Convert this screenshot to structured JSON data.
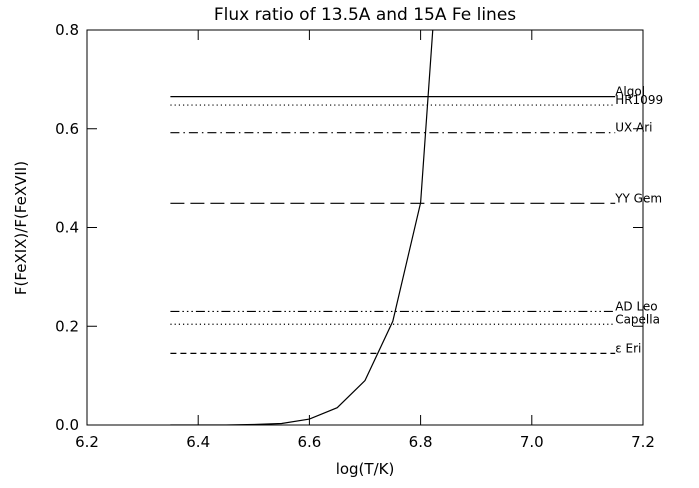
{
  "chart_data": {
    "type": "line",
    "title": "Flux ratio of 13.5A and 15A Fe lines",
    "xlabel": "log(T/K)",
    "ylabel": "F(FeXIX)/F(FeXVII)",
    "xlim": [
      6.2,
      7.2
    ],
    "ylim": [
      0,
      0.8
    ],
    "xticks": [
      6.2,
      6.4,
      6.6,
      6.8,
      {
        "value": 7,
        "label": "7.0"
      },
      7.2
    ],
    "yticks": [
      {
        "value": 0,
        "label": "0.0"
      },
      0.2,
      0.4,
      0.6,
      0.8
    ],
    "color": "#000000",
    "curve": {
      "x": [
        6.35,
        6.4,
        6.45,
        6.5,
        6.55,
        6.6,
        6.65,
        6.7,
        6.75,
        6.8,
        6.85
      ],
      "values": [
        0,
        0,
        0,
        0.001,
        0.003,
        0.012,
        0.035,
        0.09,
        0.21,
        0.45,
        1.25
      ]
    },
    "line_xrange": [
      6.35,
      7.15
    ],
    "reference_lines": [
      {
        "name": "Algol",
        "value": 0.665,
        "linestyle": "solid"
      },
      {
        "name": "HR1099",
        "value": 0.648,
        "linestyle": "dotted"
      },
      {
        "name": "UX Ari",
        "value": 0.592,
        "linestyle": "dashdot"
      },
      {
        "name": "YY Gem",
        "value": 0.449,
        "linestyle": "longdash"
      },
      {
        "name": "AD Leo",
        "value": 0.23,
        "linestyle": "dashdotdotdot"
      },
      {
        "name": "Capella",
        "value": 0.204,
        "linestyle": "dotted"
      },
      {
        "name": "ε Eri",
        "value": 0.145,
        "linestyle": "dashed"
      }
    ]
  }
}
